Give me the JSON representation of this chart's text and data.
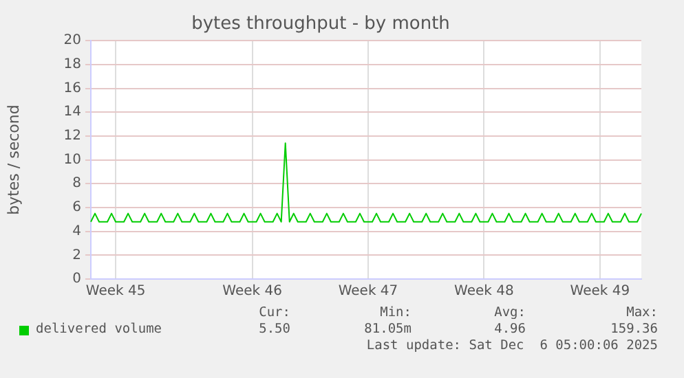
{
  "chart_data": {
    "type": "line",
    "title": "bytes throughput - by month",
    "ylabel": "bytes / second",
    "categories": [
      null,
      null,
      null,
      null,
      null,
      null,
      "Week 45",
      null,
      null,
      null,
      null,
      null,
      null,
      null,
      null,
      null,
      null,
      null,
      null,
      null,
      null,
      null,
      null,
      null,
      null,
      null,
      null,
      null,
      null,
      null,
      null,
      null,
      null,
      null,
      null,
      null,
      null,
      null,
      null,
      "Week 46",
      null,
      null,
      null,
      null,
      null,
      null,
      null,
      null,
      null,
      null,
      null,
      null,
      null,
      null,
      null,
      null,
      null,
      null,
      null,
      null,
      null,
      null,
      null,
      null,
      null,
      null,
      null,
      "Week 47",
      null,
      null,
      null,
      null,
      null,
      null,
      null,
      null,
      null,
      null,
      null,
      null,
      null,
      null,
      null,
      null,
      null,
      null,
      null,
      null,
      null,
      null,
      null,
      null,
      null,
      null,
      null,
      "Week 48",
      null,
      null,
      null,
      null,
      null,
      null,
      null,
      null,
      null,
      null,
      null,
      null,
      null,
      null,
      null,
      null,
      null,
      null,
      null,
      null,
      null,
      null,
      null,
      null,
      null,
      null,
      null,
      "Week 49",
      null,
      null,
      null,
      null,
      null,
      null,
      null,
      null,
      null,
      null
    ],
    "series": [
      {
        "name": "delivered volume",
        "color": "#00cc00",
        "values": [
          4.8,
          5.5,
          4.8,
          4.8,
          4.8,
          5.5,
          4.8,
          4.8,
          4.8,
          5.5,
          4.8,
          4.8,
          4.8,
          5.5,
          4.8,
          4.8,
          4.8,
          5.5,
          4.8,
          4.8,
          4.8,
          5.5,
          4.8,
          4.8,
          4.8,
          5.5,
          4.8,
          4.8,
          4.8,
          5.5,
          4.8,
          4.8,
          4.8,
          5.5,
          4.8,
          4.8,
          4.8,
          5.5,
          4.8,
          4.8,
          4.8,
          5.5,
          4.8,
          4.8,
          4.8,
          5.5,
          4.8,
          11.4,
          4.8,
          5.5,
          4.8,
          4.8,
          4.8,
          5.5,
          4.8,
          4.8,
          4.8,
          5.5,
          4.8,
          4.8,
          4.8,
          5.5,
          4.8,
          4.8,
          4.8,
          5.5,
          4.8,
          4.8,
          4.8,
          5.5,
          4.8,
          4.8,
          4.8,
          5.5,
          4.8,
          4.8,
          4.8,
          5.5,
          4.8,
          4.8,
          4.8,
          5.5,
          4.8,
          4.8,
          4.8,
          5.5,
          4.8,
          4.8,
          4.8,
          5.5,
          4.8,
          4.8,
          4.8,
          5.5,
          4.8,
          4.8,
          4.8,
          5.5,
          4.8,
          4.8,
          4.8,
          5.5,
          4.8,
          4.8,
          4.8,
          5.5,
          4.8,
          4.8,
          4.8,
          5.5,
          4.8,
          4.8,
          4.8,
          5.5,
          4.8,
          4.8,
          4.8,
          5.5,
          4.8,
          4.8,
          4.8,
          5.5,
          4.8,
          4.8,
          4.8,
          5.5,
          4.8,
          4.8,
          4.8,
          5.5,
          4.8,
          4.8,
          4.8,
          5.5
        ]
      }
    ],
    "ylim": [
      0,
      20
    ],
    "yticks": [
      0,
      2,
      4,
      6,
      8,
      10,
      12,
      14,
      16,
      18,
      20
    ],
    "grid": true,
    "legend": "bottom left",
    "marker": "none",
    "line_style": "solid",
    "annotations": [
      "Cur:",
      "Min:",
      "Avg:",
      "Max:",
      "5.50",
      "81.05m",
      "4.96",
      "159.36",
      "Last update: Sat Dec  6 05:00:06 2025"
    ]
  }
}
